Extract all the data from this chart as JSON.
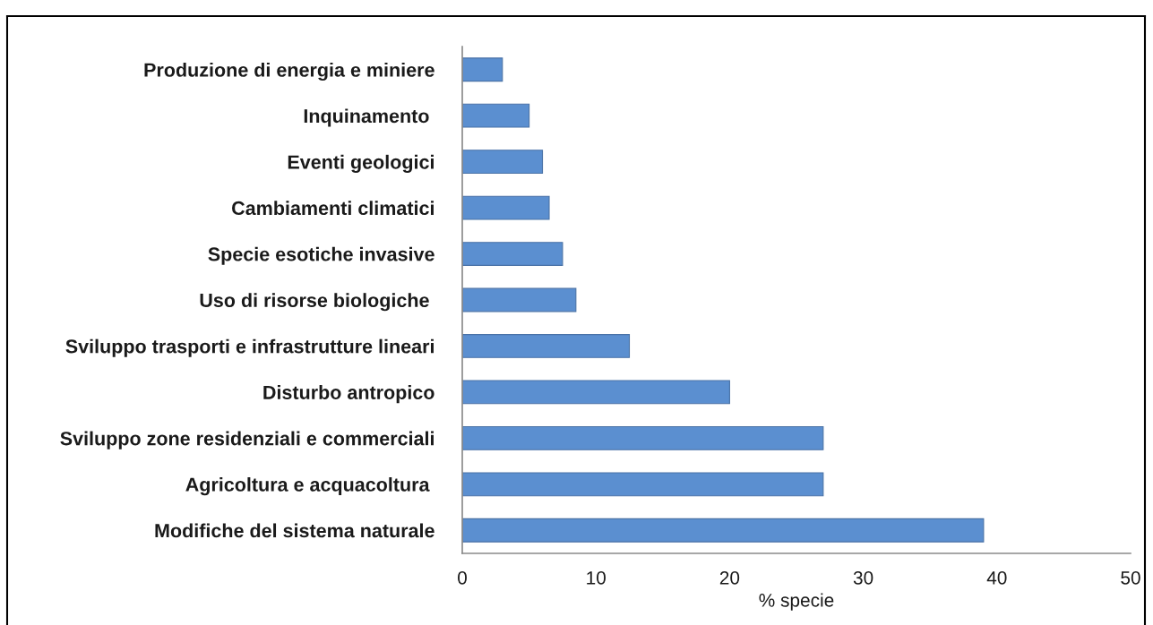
{
  "chart_data": {
    "type": "bar",
    "orientation": "horizontal",
    "xlabel": "% specie",
    "categories": [
      "Produzione di energia e miniere",
      "Inquinamento ",
      "Eventi geologici",
      "Cambiamenti climatici",
      "Specie esotiche invasive",
      "Uso di risorse biologiche ",
      "Sviluppo trasporti e infrastrutture lineari",
      "Disturbo antropico",
      "Sviluppo zone residenziali e commerciali",
      "Agricoltura e acquacoltura ",
      "Modifiche del sistema naturale"
    ],
    "values": [
      3,
      5,
      6,
      6.5,
      7.5,
      8.5,
      12.5,
      20,
      27,
      27,
      39
    ],
    "color": "#5b8fd0",
    "xlim": [
      0,
      50
    ],
    "xticks": [
      0,
      10,
      20,
      30,
      40,
      50
    ]
  }
}
